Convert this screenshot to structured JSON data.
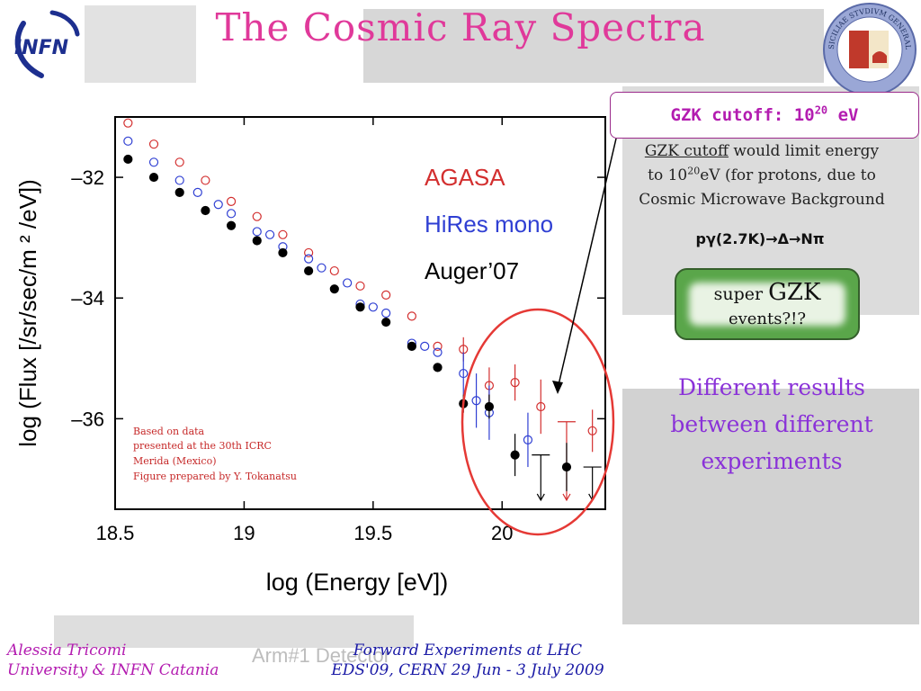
{
  "slide": {
    "title": "The Cosmic Ray Spectra",
    "logo_text": "INFN",
    "seal_text": "SICILIAE STVDIVM GENERALE 1434"
  },
  "chart_data": {
    "type": "scatter",
    "xlabel": "log (Energy  [eV])",
    "ylabel": "log (Flux [/sr/sec/m ² /eV])",
    "xlim": [
      18.5,
      20.4
    ],
    "ylim": [
      -37.5,
      -31
    ],
    "xticks": [
      18.5,
      19,
      19.5,
      20
    ],
    "yticks": [
      -32,
      -34,
      -36
    ],
    "xtick_labels": [
      "18.5",
      "19",
      "19.5",
      "20"
    ],
    "ytick_labels": [
      "–32",
      "–34",
      "–36"
    ],
    "grid": false,
    "legend_position": "top-right",
    "series": [
      {
        "name": "AGASA",
        "color": "#d32f2f",
        "marker": "open-circle",
        "points": [
          {
            "x": 18.55,
            "y": -31.1
          },
          {
            "x": 18.65,
            "y": -31.45
          },
          {
            "x": 18.75,
            "y": -31.75
          },
          {
            "x": 18.85,
            "y": -32.05
          },
          {
            "x": 18.95,
            "y": -32.4
          },
          {
            "x": 19.05,
            "y": -32.65
          },
          {
            "x": 19.15,
            "y": -32.95
          },
          {
            "x": 19.25,
            "y": -33.25
          },
          {
            "x": 19.35,
            "y": -33.55
          },
          {
            "x": 19.45,
            "y": -33.8
          },
          {
            "x": 19.55,
            "y": -33.95
          },
          {
            "x": 19.65,
            "y": -34.3
          },
          {
            "x": 19.75,
            "y": -34.8
          },
          {
            "x": 19.85,
            "y": -34.85,
            "err": 0.2
          },
          {
            "x": 19.95,
            "y": -35.45,
            "err": 0.3
          },
          {
            "x": 20.05,
            "y": -35.4,
            "err": 0.3
          },
          {
            "x": 20.15,
            "y": -35.8,
            "err": 0.45
          },
          {
            "x": 20.35,
            "y": -36.2,
            "err": 0.35
          }
        ],
        "upper_limits": [
          {
            "x": 20.25,
            "y_from": -36.05,
            "y_to": -37.35
          }
        ]
      },
      {
        "name": "HiRes mono",
        "color": "#2f3fd3",
        "marker": "open-circle",
        "points": [
          {
            "x": 18.55,
            "y": -31.4
          },
          {
            "x": 18.65,
            "y": -31.75
          },
          {
            "x": 18.75,
            "y": -32.05
          },
          {
            "x": 18.82,
            "y": -32.25
          },
          {
            "x": 18.9,
            "y": -32.45
          },
          {
            "x": 18.95,
            "y": -32.6
          },
          {
            "x": 19.05,
            "y": -32.9
          },
          {
            "x": 19.1,
            "y": -32.95
          },
          {
            "x": 19.15,
            "y": -33.15
          },
          {
            "x": 19.25,
            "y": -33.35
          },
          {
            "x": 19.3,
            "y": -33.5
          },
          {
            "x": 19.4,
            "y": -33.75
          },
          {
            "x": 19.45,
            "y": -34.1
          },
          {
            "x": 19.5,
            "y": -34.15
          },
          {
            "x": 19.55,
            "y": -34.25
          },
          {
            "x": 19.65,
            "y": -34.75
          },
          {
            "x": 19.7,
            "y": -34.8
          },
          {
            "x": 19.75,
            "y": -34.9
          },
          {
            "x": 19.85,
            "y": -35.25,
            "err": 0.35
          },
          {
            "x": 19.9,
            "y": -35.7,
            "err": 0.45
          },
          {
            "x": 19.95,
            "y": -35.9,
            "err": 0.45
          },
          {
            "x": 20.1,
            "y": -36.35,
            "err": 0.45
          }
        ],
        "upper_limits": []
      },
      {
        "name": "Auger’07",
        "color": "#000000",
        "marker": "filled-circle",
        "points": [
          {
            "x": 18.55,
            "y": -31.7
          },
          {
            "x": 18.65,
            "y": -32.0
          },
          {
            "x": 18.75,
            "y": -32.25
          },
          {
            "x": 18.85,
            "y": -32.55
          },
          {
            "x": 18.95,
            "y": -32.8
          },
          {
            "x": 19.05,
            "y": -33.05
          },
          {
            "x": 19.15,
            "y": -33.25
          },
          {
            "x": 19.25,
            "y": -33.55
          },
          {
            "x": 19.35,
            "y": -33.85
          },
          {
            "x": 19.45,
            "y": -34.15
          },
          {
            "x": 19.55,
            "y": -34.4
          },
          {
            "x": 19.65,
            "y": -34.8
          },
          {
            "x": 19.75,
            "y": -35.15
          },
          {
            "x": 19.85,
            "y": -35.75,
            "err": 0.15
          },
          {
            "x": 19.95,
            "y": -35.8,
            "err": 0.2
          },
          {
            "x": 20.05,
            "y": -36.6,
            "err": 0.35
          },
          {
            "x": 20.25,
            "y": -36.8,
            "err": 0.4
          }
        ],
        "upper_limits": [
          {
            "x": 20.15,
            "y_from": -36.6,
            "y_to": -37.35
          },
          {
            "x": 20.35,
            "y_from": -36.8,
            "y_to": -37.35
          }
        ]
      }
    ],
    "annotation": [
      "Based on data",
      "presented at the 30th ICRC",
      "Merida (Mexico)",
      "Figure prepared by Y. Tokanatsu"
    ]
  },
  "gzk": {
    "box_prefix": "GZK cutoff: 10",
    "box_exp": "20",
    "box_suffix": " eV",
    "text_link": "GZK cutoff",
    "text_l1_rest": " would limit energy",
    "text_l2_pre": "to 10",
    "text_l2_exp": "20",
    "text_l2_rest": "eV (for protons, due to",
    "text_l3": "Cosmic Microwave Background",
    "reaction": "pγ(2.7K)→Δ→Nπ"
  },
  "super_button": {
    "word_super": "super ",
    "word_gzk": "GZK",
    "line2": "events?!?"
  },
  "different_results": "Different results between different experiments",
  "footer": {
    "author": "Alessia Tricomi",
    "affiliation": "University & INFN Catania",
    "conf_line1": "Forward Experiments at LHC",
    "conf_line2": "EDS'09, CERN 29 Jun - 3 July 2009",
    "ghost_label": "Arm#1 Detector"
  }
}
